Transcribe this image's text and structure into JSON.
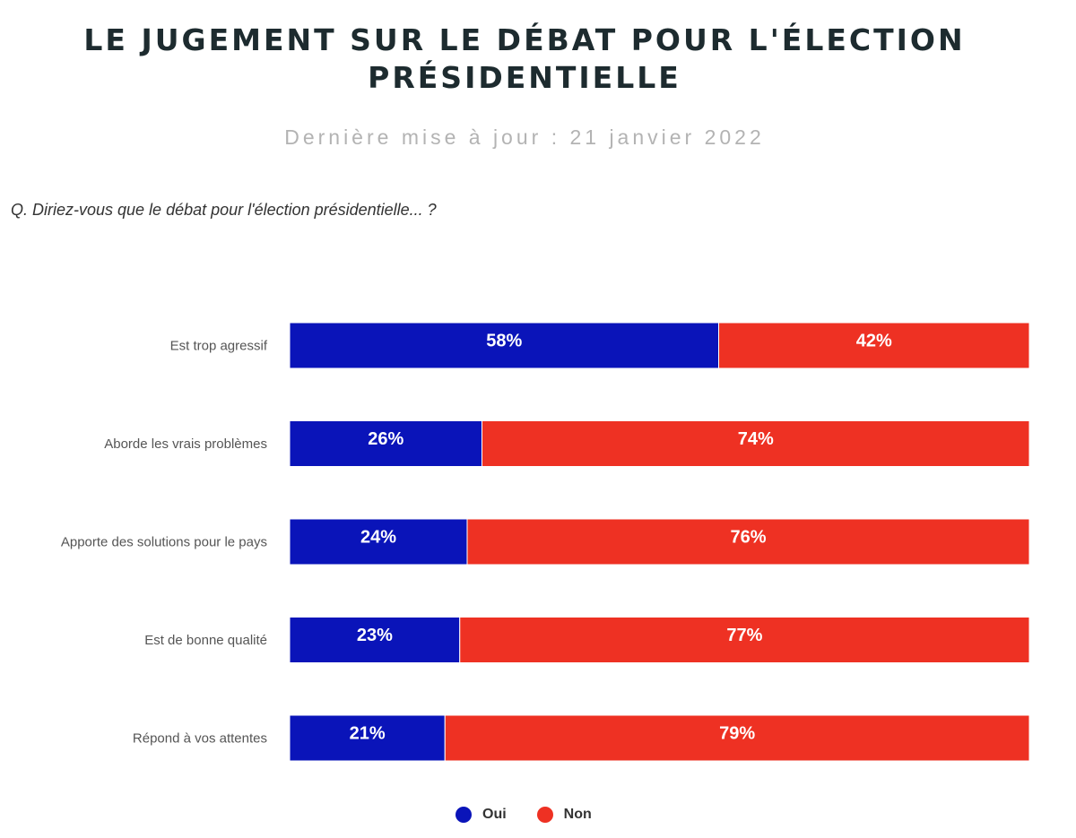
{
  "title": "LE JUGEMENT SUR LE DÉBAT POUR L'ÉLECTION PRÉSIDENTIELLE",
  "subtitle": "Dernière mise à jour : 21 janvier 2022",
  "question": "Q. Diriez-vous que le débat pour l'élection présidentielle... ?",
  "colors": {
    "oui": "#0a14b9",
    "non": "#ee3123"
  },
  "legend": {
    "oui": "Oui",
    "non": "Non"
  },
  "chart_data": {
    "type": "bar",
    "orientation": "horizontal",
    "stacked": true,
    "categories": [
      "Est trop agressif",
      "Aborde les vrais problèmes",
      "Apporte des solutions pour le pays",
      "Est de bonne qualité",
      "Répond à vos attentes"
    ],
    "series": [
      {
        "name": "Oui",
        "values": [
          58,
          26,
          24,
          23,
          21
        ],
        "labels": [
          "58%",
          "26%",
          "24%",
          "23%",
          "21%"
        ]
      },
      {
        "name": "Non",
        "values": [
          42,
          74,
          76,
          77,
          79
        ],
        "labels": [
          "42%",
          "74%",
          "76%",
          "77%",
          "79%"
        ]
      }
    ],
    "xlim": [
      0,
      100
    ],
    "legend_position": "bottom"
  }
}
